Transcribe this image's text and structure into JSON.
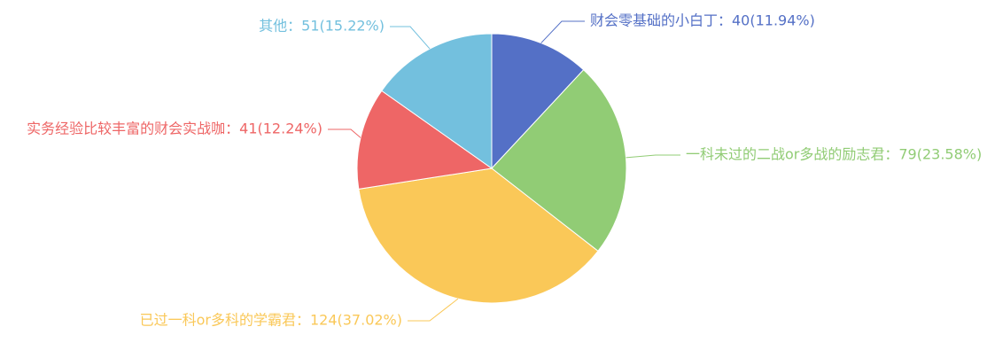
{
  "chart_data": {
    "type": "pie",
    "title": "",
    "slices": [
      {
        "name": "财会零基础的小白丁",
        "value": 40,
        "percent": "11.94%",
        "label": "财会零基础的小白丁：40(11.94%)",
        "color": "#5470c6"
      },
      {
        "name": "一科未过的二战or多战的励志君",
        "value": 79,
        "percent": "23.58%",
        "label": "一科未过的二战or多战的励志君：79(23.58%)",
        "color": "#91cc75"
      },
      {
        "name": "已过一科or多科的学霸君",
        "value": 124,
        "percent": "37.02%",
        "label": "已过一科or多科的学霸君：124(37.02%)",
        "color": "#fac858"
      },
      {
        "name": "实务经验比较丰富的财会实战咖",
        "value": 41,
        "percent": "12.24%",
        "label": "实务经验比较丰富的财会实战咖：41(12.24%)",
        "color": "#ee6666"
      },
      {
        "name": "其他",
        "value": 51,
        "percent": "15.22%",
        "label": "其他：51(15.22%)",
        "color": "#73c0de"
      }
    ]
  }
}
